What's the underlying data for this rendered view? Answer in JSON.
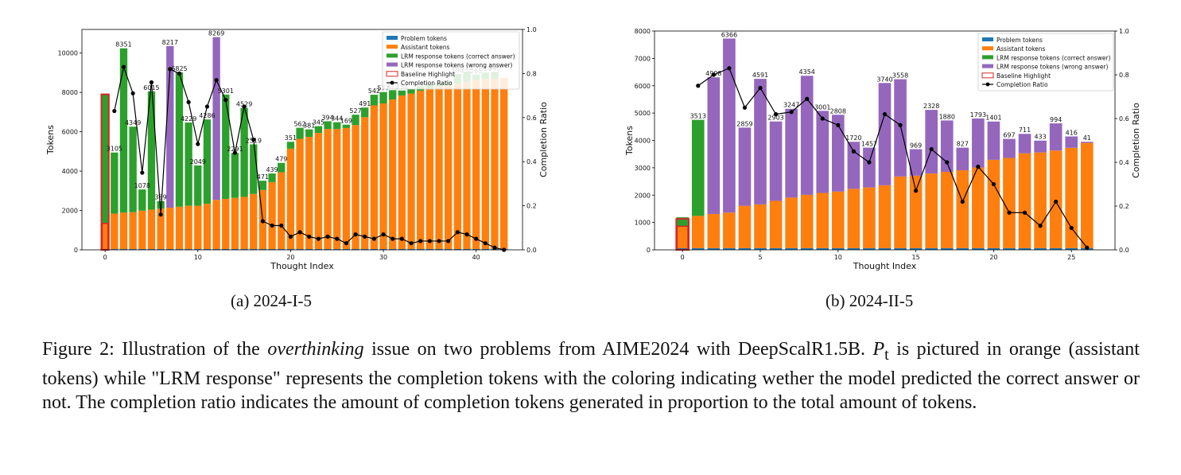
{
  "chart_data": [
    {
      "type": "bar",
      "subcaption": "(a) 2024-I-5",
      "xlabel": "Thought Index",
      "ylabel": "Tokens",
      "y2label": "Completion Ratio",
      "ylim": [
        0,
        11200
      ],
      "y2lim": [
        0,
        1.0
      ],
      "xlim": [
        -2.5,
        45
      ],
      "yticks": [
        0,
        2000,
        4000,
        6000,
        8000,
        10000
      ],
      "y2ticks": [
        0.0,
        0.2,
        0.4,
        0.6,
        0.8,
        1.0
      ],
      "xticks": [
        0,
        10,
        20,
        30,
        40
      ],
      "legend_position": "top-right",
      "legend": [
        "Problem tokens",
        "Assistant tokens",
        "LRM response tokens (correct answer)",
        "LRM response tokens (wrong answer)",
        "Baseline Highlight",
        "Completion Ratio"
      ],
      "x": [
        0,
        1,
        2,
        3,
        4,
        5,
        6,
        7,
        8,
        9,
        10,
        11,
        12,
        13,
        14,
        15,
        16,
        17,
        18,
        19,
        20,
        21,
        22,
        23,
        24,
        25,
        26,
        27,
        28,
        29,
        30,
        31,
        32,
        33,
        34,
        35,
        36,
        37,
        38,
        39,
        40,
        41,
        42,
        43
      ],
      "problem_tokens": 40,
      "assistant_tokens": [
        1300,
        1800,
        1850,
        1870,
        1950,
        2000,
        2050,
        2100,
        2150,
        2200,
        2200,
        2300,
        2500,
        2550,
        2600,
        2650,
        2800,
        3000,
        3400,
        3900,
        5100,
        5600,
        5700,
        5900,
        6100,
        6100,
        6150,
        6300,
        6700,
        7300,
        7400,
        7600,
        7800,
        7900,
        8050,
        8150,
        8250,
        8300,
        8400,
        8500,
        8600,
        8650,
        8650,
        8700
      ],
      "response_tokens": [
        6600,
        3105,
        8351,
        4349,
        1078,
        6015,
        389,
        8217,
        6825,
        4229,
        2049,
        4286,
        8269,
        5301,
        2291,
        4529,
        2519,
        471,
        439,
        479,
        351,
        562,
        381,
        345,
        394,
        344,
        169,
        527,
        491,
        542,
        577,
        472,
        254,
        240,
        230,
        220,
        210,
        200,
        500,
        525,
        265,
        319,
        345,
        0
      ],
      "response_labels": [
        "",
        "3105",
        "8351",
        "4349",
        "1078",
        "6015",
        "389",
        "8217",
        "6825",
        "4229",
        "2049",
        "4286",
        "8269",
        "5301",
        "2291",
        "4529",
        "2519",
        "471",
        "439",
        "479",
        "351",
        "562",
        "381",
        "345",
        "394",
        "344",
        "169",
        "527",
        "491",
        "542",
        "577",
        "472",
        "254",
        "",
        "",
        "",
        "",
        "",
        "500",
        "525",
        "265",
        "319",
        "345",
        ""
      ],
      "correct": [
        true,
        true,
        true,
        true,
        true,
        true,
        true,
        false,
        true,
        true,
        true,
        true,
        false,
        true,
        true,
        true,
        true,
        true,
        true,
        true,
        true,
        true,
        true,
        true,
        true,
        true,
        true,
        true,
        true,
        true,
        true,
        true,
        true,
        true,
        true,
        true,
        true,
        true,
        true,
        true,
        true,
        true,
        true,
        true
      ],
      "completion_ratio": [
        null,
        0.63,
        0.83,
        0.71,
        0.35,
        0.76,
        0.16,
        0.82,
        0.8,
        0.67,
        0.48,
        0.65,
        0.77,
        0.68,
        0.44,
        0.65,
        0.5,
        0.13,
        0.11,
        0.11,
        0.06,
        0.08,
        0.06,
        0.05,
        0.06,
        0.05,
        0.03,
        0.07,
        0.06,
        0.05,
        0.07,
        0.05,
        0.05,
        0.03,
        0.04,
        0.04,
        0.04,
        0.04,
        0.08,
        0.07,
        0.05,
        0.03,
        0.01,
        0.0
      ],
      "baseline_highlight": 7900
    },
    {
      "type": "bar",
      "subcaption": "(b) 2024-II-5",
      "xlabel": "Thought Index",
      "ylabel": "Tokens",
      "y2label": "Completion Ratio",
      "ylim": [
        0,
        8000
      ],
      "y2lim": [
        0,
        1.0
      ],
      "xlim": [
        -1.8,
        27.8
      ],
      "yticks": [
        0,
        1000,
        2000,
        3000,
        4000,
        5000,
        6000,
        7000,
        8000
      ],
      "y2ticks": [
        0.0,
        0.2,
        0.4,
        0.6,
        0.8,
        1.0
      ],
      "xticks": [
        0,
        5,
        10,
        15,
        20,
        25
      ],
      "legend_position": "top-right",
      "legend": [
        "Problem tokens",
        "Assistant tokens",
        "LRM response tokens (correct answer)",
        "LRM response tokens (wrong answer)",
        "Baseline Highlight",
        "Completion Ratio"
      ],
      "x": [
        0,
        1,
        2,
        3,
        4,
        5,
        6,
        7,
        8,
        9,
        10,
        11,
        12,
        13,
        14,
        15,
        16,
        17,
        18,
        19,
        20,
        21,
        22,
        23,
        24,
        25,
        26
      ],
      "problem_tokens": 60,
      "assistant_tokens": [
        800,
        1180,
        1250,
        1300,
        1550,
        1600,
        1730,
        1850,
        1950,
        2020,
        2070,
        2170,
        2220,
        2300,
        2620,
        2650,
        2730,
        2790,
        2850,
        2950,
        3230,
        3300,
        3470,
        3500,
        3570,
        3670,
        3850
      ],
      "response_tokens": [
        330,
        3513,
        4998,
        6366,
        2859,
        4591,
        2903,
        3247,
        4354,
        3001,
        2808,
        1720,
        1457,
        3740,
        3558,
        969,
        2328,
        1880,
        827,
        1793,
        1401,
        697,
        711,
        433,
        994,
        416,
        41
      ],
      "response_labels": [
        "",
        "3513",
        "4998",
        "6366",
        "2859",
        "4591",
        "2903",
        "3247",
        "4354",
        "3001",
        "2808",
        "1720",
        "1457",
        "3740",
        "3558",
        "969",
        "2328",
        "1880",
        "827",
        "1793",
        "1401",
        "697",
        "711",
        "433",
        "994",
        "416",
        "41"
      ],
      "correct": [
        true,
        true,
        false,
        false,
        false,
        false,
        false,
        false,
        false,
        false,
        false,
        false,
        false,
        false,
        false,
        false,
        false,
        false,
        false,
        false,
        false,
        false,
        false,
        false,
        false,
        false,
        false
      ],
      "completion_ratio": [
        null,
        0.75,
        0.8,
        0.83,
        0.65,
        0.74,
        0.62,
        0.63,
        0.69,
        0.6,
        0.57,
        0.45,
        0.4,
        0.62,
        0.57,
        0.27,
        0.46,
        0.4,
        0.22,
        0.38,
        0.3,
        0.17,
        0.17,
        0.11,
        0.22,
        0.1,
        0.01
      ],
      "baseline_highlight": 1130
    }
  ],
  "colors": {
    "problem": "#1f77b4",
    "assistant": "#ff7f0e",
    "correct": "#2ca02c",
    "wrong": "#9467bd",
    "baseline": "#d62728",
    "ratio": "#000000"
  },
  "caption": {
    "label": "Figure 2: Illustration of the ",
    "emph": "overthinking",
    "rest": " issue on two problems from AIME2024 with DeepScalR1.5B. ",
    "math": "P",
    "math_sub": "t",
    "tail": " is pictured in orange (assistant tokens) while \"LRM response\" represents the completion tokens with the coloring indicating wether the model predicted the correct answer or not. The completion ratio indicates the amount of completion tokens generated in proportion to the total amount of tokens."
  }
}
